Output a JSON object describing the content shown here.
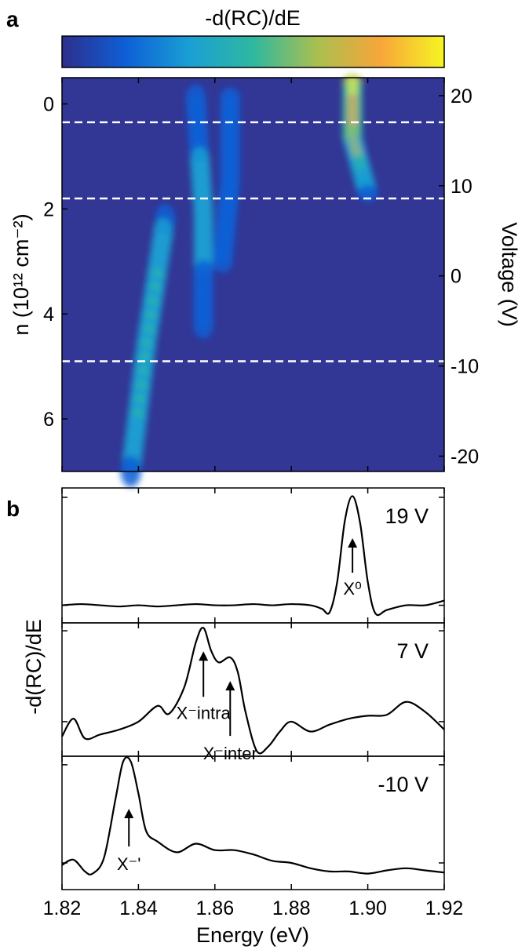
{
  "figure": {
    "panel_a_label": "a",
    "panel_b_label": "b"
  },
  "chart_data": [
    {
      "type": "heatmap",
      "panel": "a",
      "colorbar_label": "-d(RC)/dE",
      "colormap": [
        "#2d2f8c",
        "#0e5fd6",
        "#1a9fd4",
        "#2fb8a0",
        "#a9bf50",
        "#f7a63a",
        "#f6f523"
      ],
      "background_color": "#323695",
      "xlim": [
        1.82,
        1.92
      ],
      "ylabel": "n (10¹² cm⁻²)",
      "ylim": [
        -0.5,
        7.0
      ],
      "yticks": [
        0,
        2,
        4,
        6
      ],
      "y2label": "Voltage (V)",
      "y2lim": [
        22,
        -21.7
      ],
      "y2ticks": [
        20,
        10,
        0,
        -10,
        -20
      ],
      "dashed_lines_n": [
        0.35,
        1.8,
        4.9
      ],
      "features": [
        {
          "name": "X⁰",
          "n_range": [
            -0.4,
            1.7
          ],
          "energy_center": [
            1.896,
            1.896,
            1.9
          ],
          "peak_level": 1.0
        },
        {
          "name": "X⁻intra",
          "n_range": [
            -0.1,
            4.2
          ],
          "energy_center": [
            1.855,
            1.857,
            1.857
          ],
          "peak_level": 0.45
        },
        {
          "name": "X⁻inter",
          "n_range": [
            -0.1,
            3.0
          ],
          "energy_center": [
            1.864,
            1.864,
            1.862
          ],
          "peak_level": 0.4
        },
        {
          "name": "X⁻'",
          "n_range": [
            2.2,
            7.0
          ],
          "energy_center": [
            1.847,
            1.842,
            1.838
          ],
          "peak_level": 0.55
        }
      ]
    },
    {
      "type": "line",
      "panel": "b",
      "xlabel": "Energy (eV)",
      "ylabel": "-d(RC)/dE",
      "xlim": [
        1.82,
        1.92
      ],
      "xticks": [
        "1.82",
        "1.84",
        "1.86",
        "1.88",
        "1.90",
        "1.92"
      ],
      "subplots": [
        {
          "label": "19 V",
          "ylim": [
            -0.15,
            1.0
          ],
          "x": [
            1.82,
            1.825,
            1.83,
            1.835,
            1.84,
            1.845,
            1.85,
            1.855,
            1.86,
            1.865,
            1.87,
            1.875,
            1.88,
            1.885,
            1.888,
            1.89,
            1.892,
            1.894,
            1.896,
            1.898,
            1.9,
            1.902,
            1.905,
            1.91,
            1.915,
            1.92
          ],
          "y": [
            0.0,
            0.01,
            0.0,
            -0.01,
            0.0,
            -0.01,
            0.0,
            0.01,
            0.0,
            0.0,
            0.01,
            0.0,
            0.01,
            0.0,
            -0.03,
            -0.06,
            0.2,
            0.72,
            0.93,
            0.7,
            0.2,
            -0.07,
            -0.04,
            0.0,
            0.0,
            0.04
          ],
          "annotations": [
            {
              "text": "X⁰",
              "x": 1.896
            }
          ]
        },
        {
          "label": "7 V",
          "ylim": [
            -0.35,
            1.0
          ],
          "x": [
            1.82,
            1.823,
            1.826,
            1.83,
            1.835,
            1.84,
            1.845,
            1.848,
            1.852,
            1.855,
            1.857,
            1.859,
            1.861,
            1.864,
            1.866,
            1.868,
            1.871,
            1.874,
            1.877,
            1.88,
            1.885,
            1.89,
            1.895,
            1.9,
            1.905,
            1.91,
            1.915,
            1.92
          ],
          "y": [
            -0.15,
            0.03,
            -0.17,
            -0.13,
            -0.08,
            0.0,
            0.16,
            0.08,
            0.35,
            0.8,
            0.95,
            0.72,
            0.6,
            0.65,
            0.5,
            0.1,
            -0.3,
            -0.25,
            -0.1,
            0.0,
            -0.1,
            -0.03,
            0.03,
            0.06,
            0.07,
            0.2,
            0.1,
            -0.08
          ],
          "annotations": [
            {
              "text": "X⁻intra",
              "x": 1.857
            },
            {
              "text": "X⁻inter",
              "x": 1.864
            }
          ]
        },
        {
          "label": "-10 V",
          "ylim": [
            -0.25,
            1.0
          ],
          "x": [
            1.82,
            1.823,
            1.826,
            1.828,
            1.831,
            1.834,
            1.836,
            1.838,
            1.84,
            1.842,
            1.845,
            1.85,
            1.855,
            1.86,
            1.865,
            1.87,
            1.875,
            1.88,
            1.885,
            1.89,
            1.895,
            1.9,
            1.905,
            1.91,
            1.915,
            1.92
          ],
          "y": [
            -0.02,
            0.03,
            -0.08,
            -0.1,
            0.05,
            0.6,
            0.95,
            0.95,
            0.65,
            0.3,
            0.2,
            0.1,
            0.18,
            0.12,
            0.12,
            0.08,
            0.02,
            0.0,
            -0.05,
            -0.08,
            -0.08,
            -0.1,
            -0.07,
            -0.05,
            -0.07,
            -0.09
          ],
          "annotations": [
            {
              "text": "X⁻'",
              "x": 1.8375
            }
          ]
        }
      ]
    }
  ]
}
